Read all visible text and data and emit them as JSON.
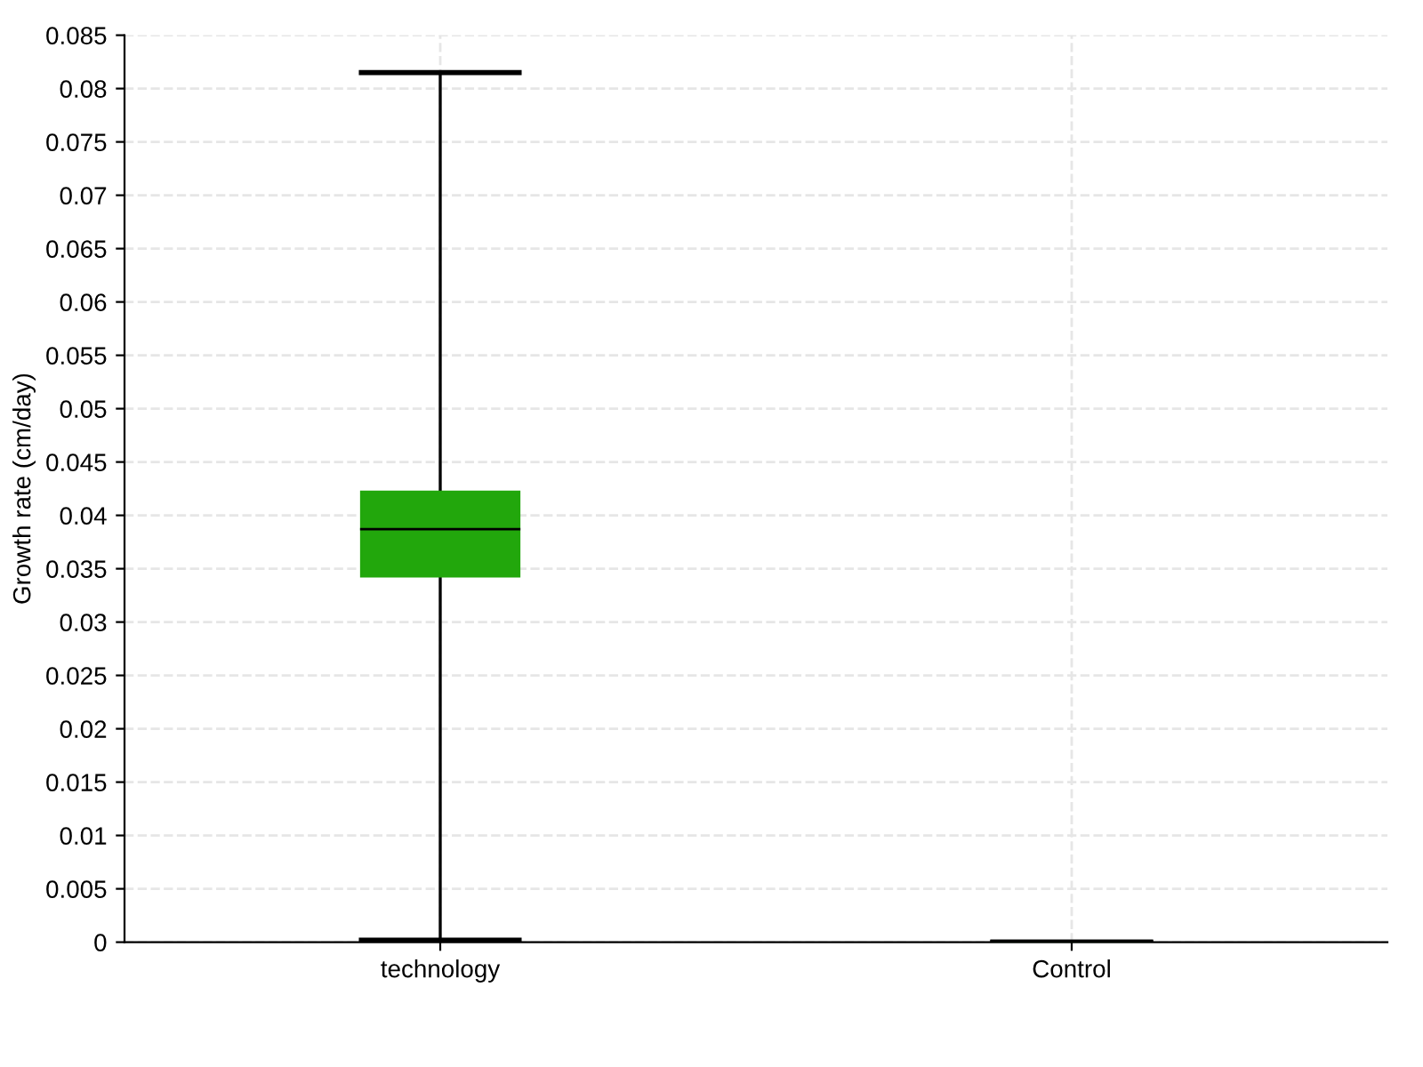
{
  "chart_data": {
    "type": "box",
    "ylabel": "Growth rate (cm/day)",
    "categories": [
      "technology",
      "Control"
    ],
    "boxes": [
      {
        "low": 0.0002,
        "q1": 0.0343,
        "median": 0.0387,
        "q3": 0.0422,
        "high": 0.0815
      },
      {
        "low": 0,
        "q1": 0,
        "median": 0,
        "q3": 0,
        "high": 0
      }
    ],
    "color": "#22a70c",
    "ylim": [
      0,
      0.085
    ],
    "yticks": [
      0,
      0.005,
      0.01,
      0.015,
      0.02,
      0.025,
      0.03,
      0.035,
      0.04,
      0.045,
      0.05,
      0.055,
      0.06,
      0.065,
      0.07,
      0.075,
      0.08,
      0.085
    ],
    "grid": true
  }
}
